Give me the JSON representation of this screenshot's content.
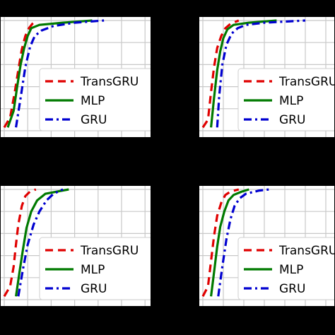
{
  "colors": {
    "background": "#000000",
    "panel": "#ffffff",
    "grid": "#c8c8c8",
    "transgru": "#e00000",
    "mlp": "#007a00",
    "gru": "#0000d0"
  },
  "chart_data": [
    {
      "type": "line",
      "xlim": [
        0,
        1
      ],
      "ylim": [
        0,
        1
      ],
      "grid": true,
      "legend": "lower-right",
      "series": [
        {
          "name": "TransGRU",
          "style": "dashed",
          "x": [
            0.0,
            0.05,
            0.09,
            0.12,
            0.15,
            0.18,
            0.21,
            0.24,
            0.27
          ],
          "y": [
            0.03,
            0.12,
            0.35,
            0.55,
            0.74,
            0.86,
            0.93,
            0.97,
            1.0
          ]
        },
        {
          "name": "MLP",
          "style": "solid",
          "x": [
            0.03,
            0.08,
            0.11,
            0.14,
            0.17,
            0.2,
            0.23,
            0.3,
            0.5,
            0.75
          ],
          "y": [
            0.03,
            0.18,
            0.4,
            0.6,
            0.75,
            0.86,
            0.93,
            0.96,
            0.98,
            1.0
          ]
        },
        {
          "name": "GRU",
          "style": "dashdot",
          "x": [
            0.1,
            0.14,
            0.18,
            0.22,
            0.26,
            0.32,
            0.42,
            0.6,
            0.85
          ],
          "y": [
            0.03,
            0.3,
            0.58,
            0.76,
            0.86,
            0.91,
            0.95,
            0.98,
            1.0
          ]
        }
      ]
    },
    {
      "type": "line",
      "xlim": [
        0,
        1
      ],
      "ylim": [
        0,
        1
      ],
      "grid": true,
      "legend": "lower-right",
      "series": [
        {
          "name": "TransGRU",
          "style": "dashed",
          "x": [
            0.0,
            0.05,
            0.08,
            0.11,
            0.14,
            0.18,
            0.22,
            0.27,
            0.35
          ],
          "y": [
            0.03,
            0.1,
            0.35,
            0.58,
            0.75,
            0.86,
            0.93,
            0.97,
            1.0
          ]
        },
        {
          "name": "MLP",
          "style": "solid",
          "x": [
            0.08,
            0.11,
            0.14,
            0.17,
            0.2,
            0.24,
            0.3,
            0.45,
            0.72
          ],
          "y": [
            0.03,
            0.3,
            0.55,
            0.72,
            0.84,
            0.92,
            0.96,
            0.98,
            1.0
          ]
        },
        {
          "name": "GRU",
          "style": "dashdot",
          "x": [
            0.14,
            0.16,
            0.19,
            0.23,
            0.28,
            0.34,
            0.42,
            0.6,
            1.0
          ],
          "y": [
            0.03,
            0.32,
            0.6,
            0.78,
            0.88,
            0.93,
            0.96,
            0.98,
            1.0
          ]
        }
      ]
    },
    {
      "type": "line",
      "xlim": [
        0,
        1
      ],
      "ylim": [
        0,
        1
      ],
      "grid": true,
      "legend": "lower-right",
      "series": [
        {
          "name": "TransGRU",
          "style": "dashed",
          "x": [
            0.0,
            0.05,
            0.08,
            0.1,
            0.12,
            0.15,
            0.18,
            0.22,
            0.27
          ],
          "y": [
            0.03,
            0.12,
            0.3,
            0.5,
            0.68,
            0.85,
            0.94,
            0.98,
            1.0
          ]
        },
        {
          "name": "MLP",
          "style": "solid",
          "x": [
            0.1,
            0.13,
            0.16,
            0.19,
            0.23,
            0.28,
            0.35,
            0.45,
            0.55
          ],
          "y": [
            0.03,
            0.25,
            0.46,
            0.65,
            0.8,
            0.9,
            0.96,
            0.98,
            1.0
          ]
        },
        {
          "name": "GRU",
          "style": "dashdot",
          "x": [
            0.12,
            0.16,
            0.2,
            0.25,
            0.3,
            0.36,
            0.42,
            0.5
          ],
          "y": [
            0.03,
            0.28,
            0.5,
            0.68,
            0.8,
            0.9,
            0.96,
            1.0
          ]
        }
      ]
    },
    {
      "type": "line",
      "xlim": [
        0,
        1
      ],
      "ylim": [
        0,
        1
      ],
      "grid": true,
      "legend": "lower-right",
      "series": [
        {
          "name": "TransGRU",
          "style": "dashed",
          "x": [
            0.0,
            0.05,
            0.08,
            0.11,
            0.14,
            0.18,
            0.22,
            0.27,
            0.35
          ],
          "y": [
            0.03,
            0.12,
            0.35,
            0.58,
            0.76,
            0.88,
            0.95,
            0.98,
            1.0
          ]
        },
        {
          "name": "MLP",
          "style": "solid",
          "x": [
            0.08,
            0.11,
            0.14,
            0.17,
            0.21,
            0.25,
            0.3,
            0.38,
            0.45
          ],
          "y": [
            0.03,
            0.25,
            0.48,
            0.66,
            0.8,
            0.9,
            0.95,
            0.98,
            1.0
          ]
        },
        {
          "name": "GRU",
          "style": "dashdot",
          "x": [
            0.15,
            0.19,
            0.23,
            0.27,
            0.31,
            0.36,
            0.42,
            0.55,
            0.65
          ],
          "y": [
            0.03,
            0.3,
            0.55,
            0.73,
            0.85,
            0.92,
            0.96,
            0.99,
            1.0
          ]
        }
      ]
    }
  ]
}
